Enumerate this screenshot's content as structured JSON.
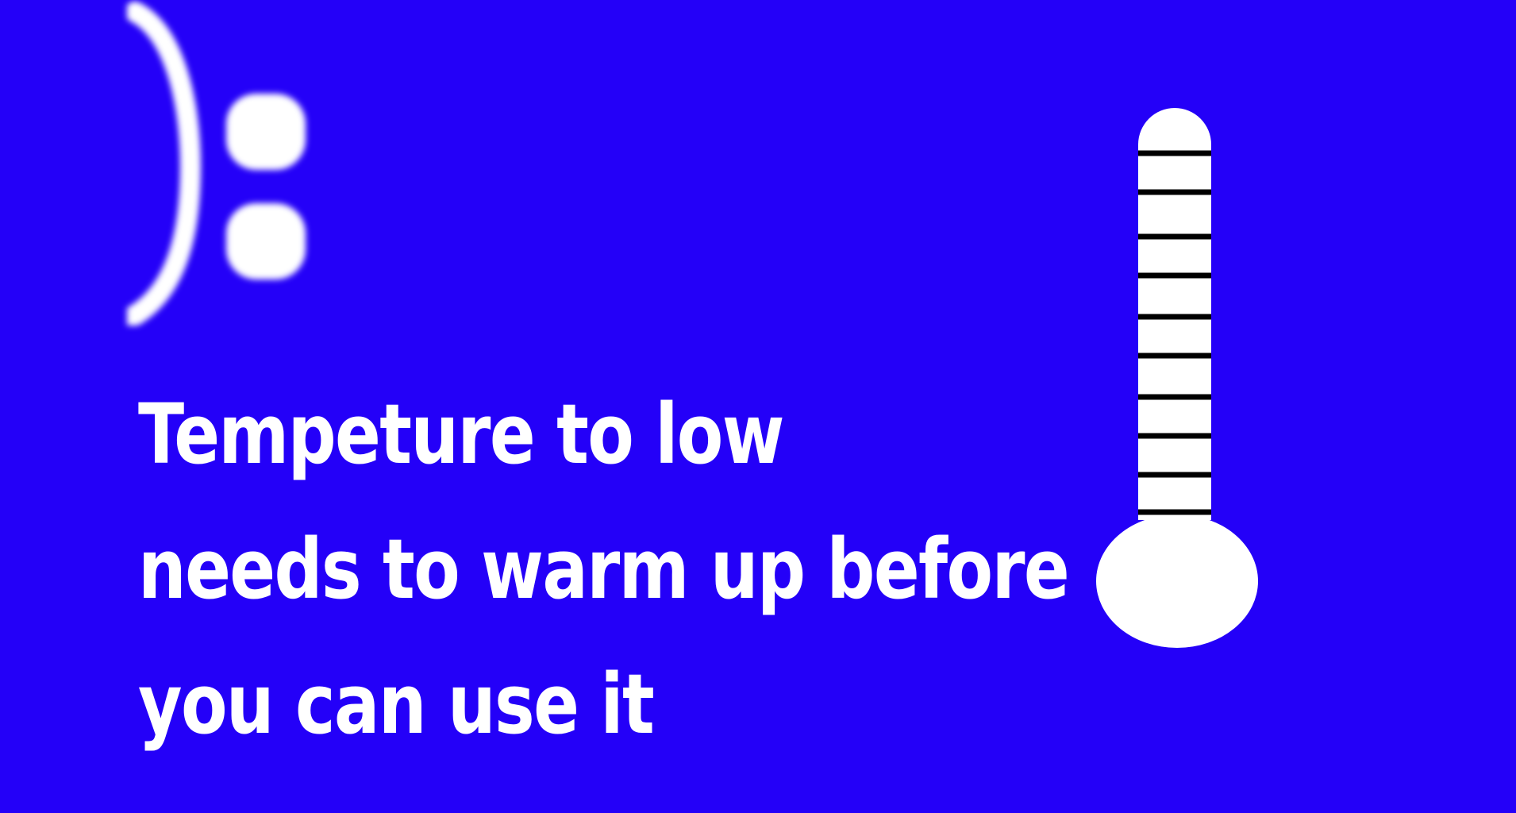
{
  "screen": {
    "background_color": "#2400f8",
    "foreground_color": "#ffffff",
    "tick_color": "#000000"
  },
  "emoticon": {
    "text": "):",
    "icon": "sad-face-icon"
  },
  "message": {
    "lines": [
      "Tempeture to low",
      "needs to warm up before",
      "you can use it"
    ]
  },
  "thermometer": {
    "icon": "thermometer-icon",
    "tick_count": 10
  }
}
